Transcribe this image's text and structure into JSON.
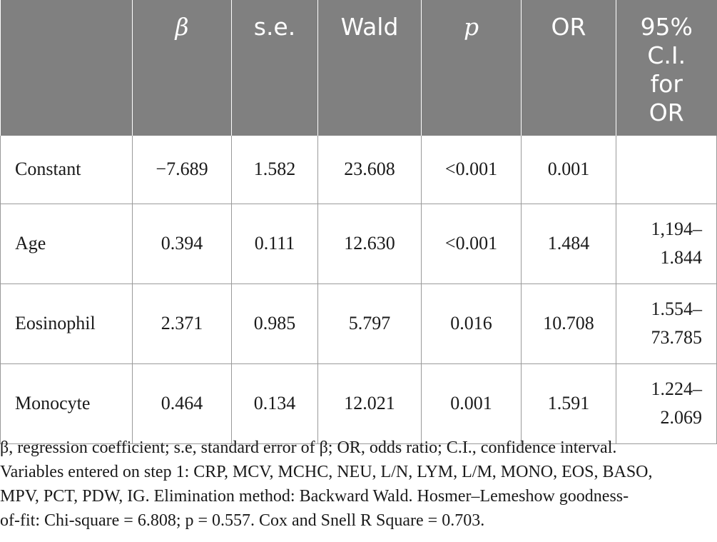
{
  "table": {
    "headers": [
      "",
      "β",
      "s.e.",
      "Wald",
      "p",
      "OR",
      "95% C.I. for OR"
    ],
    "header_lines": {
      "ci": [
        "95%",
        "C.I.",
        "for",
        "OR"
      ]
    },
    "rows": [
      {
        "label": "Constant",
        "beta": "−7.689",
        "se": "1.582",
        "wald": "23.608",
        "p": "<0.001",
        "or": "0.001",
        "ci": [
          "",
          ""
        ]
      },
      {
        "label": "Age",
        "beta": "0.394",
        "se": "0.111",
        "wald": "12.630",
        "p": "<0.001",
        "or": "1.484",
        "ci": [
          "1,194–",
          "1.844"
        ]
      },
      {
        "label": "Eosinophil",
        "beta": "2.371",
        "se": "0.985",
        "wald": "5.797",
        "p": "0.016",
        "or": "10.708",
        "ci": [
          "1.554–",
          "73.785"
        ]
      },
      {
        "label": "Monocyte",
        "beta": "0.464",
        "se": "0.134",
        "wald": "12.021",
        "p": "0.001",
        "or": "1.591",
        "ci": [
          "1.224–",
          "2.069"
        ]
      }
    ]
  },
  "footnote": {
    "line1": "β, regression coefficient; s.e, standard error of β; OR, odds ratio; C.I., confidence interval.",
    "line2": "Variables entered on step 1: CRP, MCV, MCHC, NEU, L/N, LYM, L/M, MONO, EOS, BASO,",
    "line3": "MPV, PCT, PDW, IG. Elimination method: Backward Wald. Hosmer–Lemeshow goodness-",
    "line4": "of-fit: Chi-square = 6.808; p = 0.557. Cox and Snell R Square = 0.703."
  },
  "colors": {
    "header_bg": "#808080",
    "header_text": "#ffffff",
    "grid": "#9a9a9a"
  }
}
